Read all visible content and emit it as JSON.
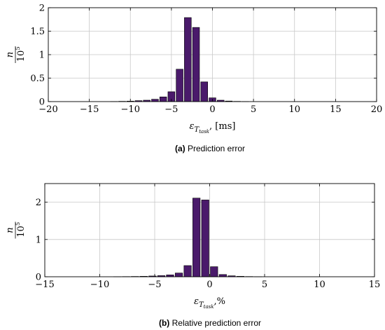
{
  "bar_color": "#4a1a6b",
  "chart_data": [
    {
      "type": "bar",
      "caption_letter": "(a)",
      "caption_text": "Prediction error",
      "xlabel_main": "ε",
      "xlabel_sub": "T",
      "xlabel_subsub": "task",
      "xlabel_unit": ", [ms]",
      "ylabel_num": "n",
      "ylabel_den": "10",
      "ylabel_exp": "5",
      "xlim": [
        -20,
        20
      ],
      "ylim": [
        0,
        2
      ],
      "xticks": [
        -20,
        -15,
        -10,
        -5,
        0,
        5,
        10,
        15,
        20
      ],
      "xtick_labels": [
        "−20",
        "−15",
        "−10",
        "−5",
        "0",
        "5",
        "10",
        "15",
        "20"
      ],
      "yticks": [
        0,
        0.5,
        1,
        1.5,
        2
      ],
      "ytick_labels": [
        "0",
        "0.5",
        "1",
        "1.5",
        "2"
      ],
      "bin_width": 1,
      "x": [
        -12,
        -11,
        -10,
        -9,
        -8,
        -7,
        -6,
        -5,
        -4,
        -3,
        -2,
        -1,
        0,
        1,
        2,
        3,
        4
      ],
      "values": [
        0.003,
        0.006,
        0.01,
        0.02,
        0.03,
        0.05,
        0.1,
        0.21,
        0.69,
        1.79,
        1.58,
        0.42,
        0.08,
        0.03,
        0.012,
        0.005,
        0.002
      ],
      "grid": true
    },
    {
      "type": "bar",
      "caption_letter": "(b)",
      "caption_text": "Relative prediction error",
      "xlabel_main": "ε",
      "xlabel_sub": "T",
      "xlabel_subsub": "task",
      "xlabel_unit": ",%",
      "ylabel_num": "n",
      "ylabel_den": "10",
      "ylabel_exp": "5",
      "xlim": [
        -15,
        15
      ],
      "ylim": [
        0,
        2.5
      ],
      "xticks": [
        -15,
        -10,
        -5,
        0,
        5,
        10,
        15
      ],
      "xtick_labels": [
        "−15",
        "−10",
        "−5",
        "0",
        "5",
        "10",
        "15"
      ],
      "yticks": [
        0,
        1,
        2
      ],
      "ytick_labels": [
        "0",
        "1",
        "2"
      ],
      "bin_width": 0.8,
      "x": [
        -8.4,
        -7.6,
        -6.8,
        -6.0,
        -5.2,
        -4.4,
        -3.6,
        -2.8,
        -2.0,
        -1.2,
        -0.4,
        0.4,
        1.2,
        2.0,
        2.8,
        3.6,
        4.4
      ],
      "values": [
        0.003,
        0.005,
        0.008,
        0.012,
        0.02,
        0.03,
        0.05,
        0.1,
        0.3,
        2.11,
        2.06,
        0.27,
        0.06,
        0.025,
        0.012,
        0.006,
        0.003
      ],
      "grid": true
    }
  ]
}
